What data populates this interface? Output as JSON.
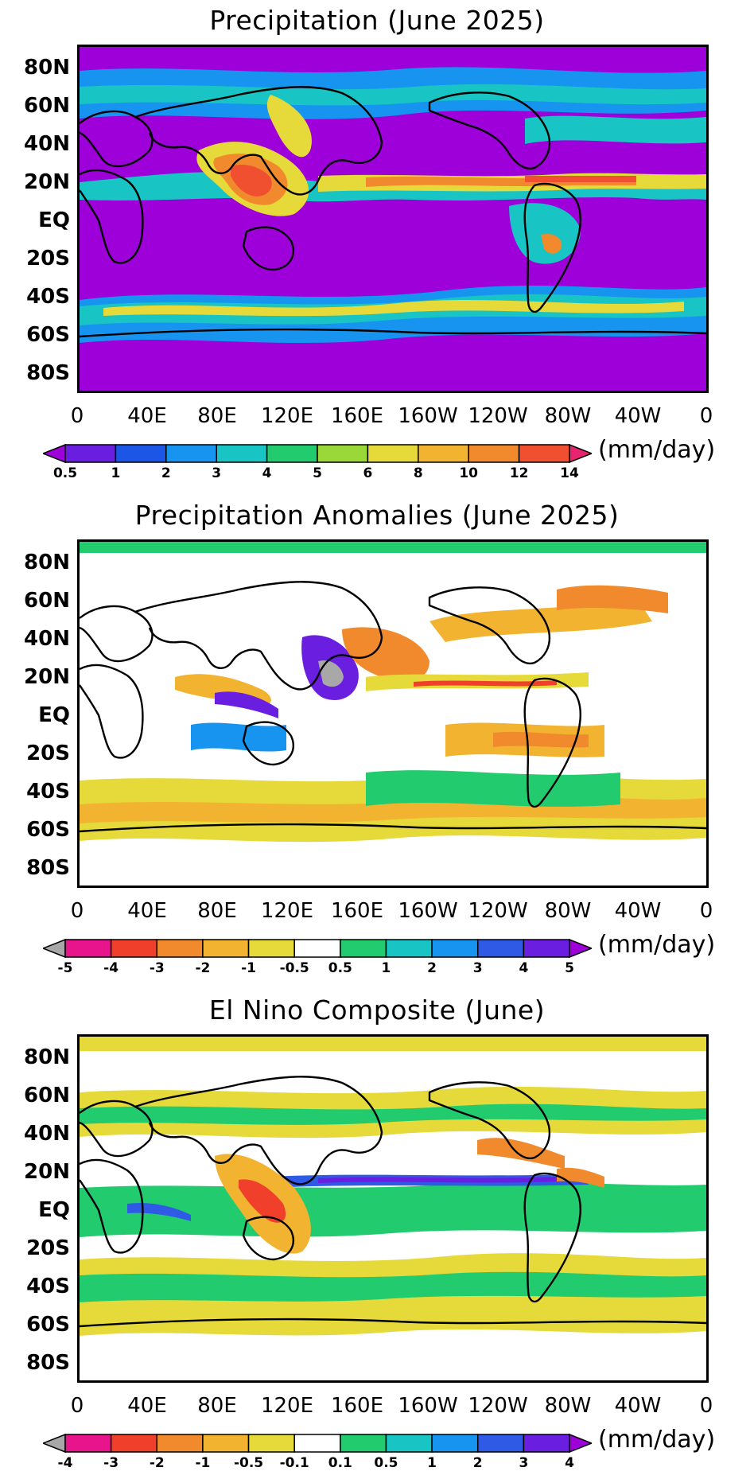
{
  "panels": [
    {
      "title": "Precipitation (June 2025)",
      "units": "(mm/day)",
      "lat_labels": [
        "80N",
        "60N",
        "40N",
        "20N",
        "EQ",
        "20S",
        "40S",
        "60S",
        "80S"
      ],
      "lon_labels": [
        "0",
        "40E",
        "80E",
        "120E",
        "160E",
        "160W",
        "120W",
        "80W",
        "40W",
        "0"
      ],
      "colorbar": {
        "colors": [
          "#9d00d9",
          "#6a1ee0",
          "#1c56e6",
          "#1694f0",
          "#18c4c4",
          "#22cc6e",
          "#9ad83a",
          "#e6d93a",
          "#f1b330",
          "#f08a2c",
          "#f0502f",
          "#e8246e"
        ],
        "ticks": [
          "0.5",
          "1",
          "2",
          "3",
          "4",
          "5",
          "6",
          "8",
          "10",
          "12",
          "14"
        ]
      }
    },
    {
      "title": "Precipitation Anomalies (June 2025)",
      "units": "(mm/day)",
      "lat_labels": [
        "80N",
        "60N",
        "40N",
        "20N",
        "EQ",
        "20S",
        "40S",
        "60S",
        "80S"
      ],
      "lon_labels": [
        "0",
        "40E",
        "80E",
        "120E",
        "160E",
        "160W",
        "120W",
        "80W",
        "40W",
        "0"
      ],
      "colorbar": {
        "colors": [
          "#a8a8a8",
          "#e8148c",
          "#f0402c",
          "#f08a2c",
          "#f1b330",
          "#e6d93a",
          "#ffffff",
          "#22cc6e",
          "#18c4c4",
          "#1694f0",
          "#2f5ae6",
          "#6a1ee0",
          "#9d00d9"
        ],
        "ticks": [
          "-5",
          "-4",
          "-3",
          "-2",
          "-1",
          "-0.5",
          "0.5",
          "1",
          "2",
          "3",
          "4",
          "5"
        ]
      }
    },
    {
      "title": "El Nino Composite (June)",
      "units": "(mm/day)",
      "lat_labels": [
        "80N",
        "60N",
        "40N",
        "20N",
        "EQ",
        "20S",
        "40S",
        "60S",
        "80S"
      ],
      "lon_labels": [
        "0",
        "40E",
        "80E",
        "120E",
        "160E",
        "160W",
        "120W",
        "80W",
        "40W",
        "0"
      ],
      "colorbar": {
        "colors": [
          "#a8a8a8",
          "#e8148c",
          "#f0402c",
          "#f08a2c",
          "#f1b330",
          "#e6d93a",
          "#ffffff",
          "#22cc6e",
          "#18c4c4",
          "#1694f0",
          "#2f5ae6",
          "#6a1ee0",
          "#9d00d9"
        ],
        "ticks": [
          "-4",
          "-3",
          "-2",
          "-1",
          "-0.5",
          "-0.1",
          "0.1",
          "0.5",
          "1",
          "2",
          "3",
          "4"
        ]
      }
    }
  ]
}
